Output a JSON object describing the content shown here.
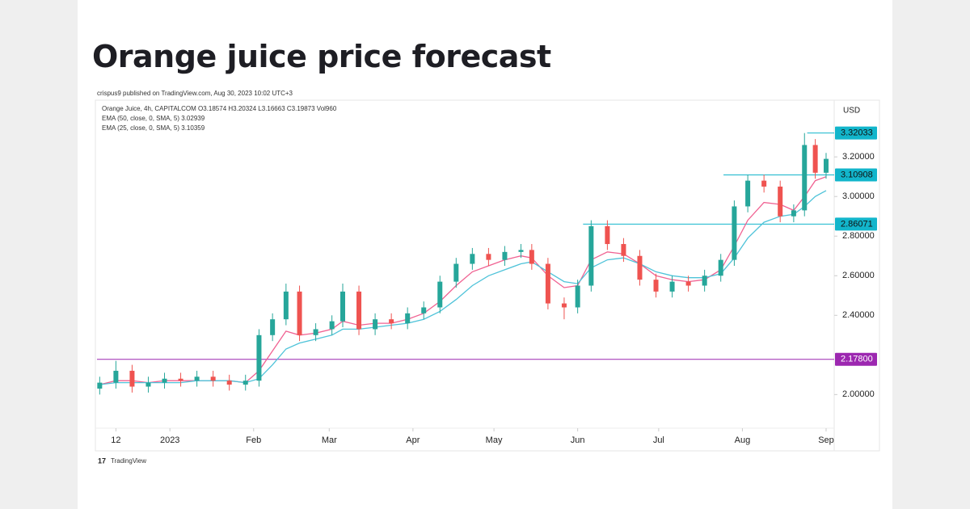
{
  "header": {
    "title": "Orange juice price forecast"
  },
  "chart_data": {
    "type": "candlestick",
    "published": "crispus9 published on TradingView.com, Aug 30, 2023 10:02 UTC+3",
    "legend_lines": [
      "Orange Juice, 4h, CAPITALCOM O3.18574 H3.20324 L3.16663 C3.19873 Vol960",
      "EMA (50, close, 0, SMA, 5) 3.02939",
      "EMA (25, close, 0, SMA, 5) 3.10359"
    ],
    "currency": "USD",
    "footer": "TradingView",
    "up_color": "#26a69a",
    "down_color": "#ef5350",
    "x": [
      -26,
      -20,
      -14,
      -8,
      -2,
      4,
      10,
      16,
      22,
      28,
      33,
      38,
      43,
      48,
      54,
      60,
      64,
      70,
      76,
      82,
      88,
      94,
      100,
      106,
      112,
      118,
      124,
      130,
      134,
      140,
      146,
      151,
      156,
      162,
      168,
      174,
      180,
      186,
      192,
      198,
      204,
      209,
      214,
      220,
      226,
      231,
      235,
      239,
      243
    ],
    "open": [
      2.03,
      2.06,
      2.12,
      2.04,
      2.06,
      2.08,
      2.07,
      2.09,
      2.07,
      2.05,
      2.07,
      2.3,
      2.38,
      2.52,
      2.3,
      2.33,
      2.37,
      2.52,
      2.33,
      2.38,
      2.36,
      2.41,
      2.44,
      2.57,
      2.66,
      2.71,
      2.68,
      2.72,
      2.73,
      2.66,
      2.46,
      2.44,
      2.55,
      2.85,
      2.76,
      2.7,
      2.58,
      2.52,
      2.57,
      2.55,
      2.6,
      2.68,
      2.95,
      3.08,
      3.05,
      2.9,
      2.93,
      3.26,
      3.12
    ],
    "high": [
      2.09,
      2.17,
      2.15,
      2.09,
      2.11,
      2.11,
      2.12,
      2.12,
      2.1,
      2.1,
      2.33,
      2.41,
      2.56,
      2.55,
      2.36,
      2.4,
      2.56,
      2.55,
      2.41,
      2.41,
      2.44,
      2.47,
      2.6,
      2.69,
      2.74,
      2.74,
      2.75,
      2.76,
      2.76,
      2.69,
      2.49,
      2.58,
      2.88,
      2.88,
      2.79,
      2.73,
      2.61,
      2.6,
      2.6,
      2.63,
      2.71,
      2.98,
      3.11,
      3.11,
      3.08,
      2.96,
      3.32033,
      3.29,
      3.22
    ],
    "low": [
      2.0,
      2.03,
      2.01,
      2.01,
      2.03,
      2.04,
      2.04,
      2.04,
      2.02,
      2.02,
      2.04,
      2.27,
      2.35,
      2.27,
      2.27,
      2.3,
      2.34,
      2.3,
      2.3,
      2.33,
      2.33,
      2.38,
      2.41,
      2.54,
      2.63,
      2.65,
      2.65,
      2.69,
      2.63,
      2.43,
      2.38,
      2.41,
      2.52,
      2.73,
      2.67,
      2.55,
      2.49,
      2.49,
      2.52,
      2.52,
      2.57,
      2.65,
      2.92,
      3.02,
      2.87,
      2.87,
      2.9,
      3.09,
      3.09
    ],
    "close": [
      2.06,
      2.12,
      2.04,
      2.06,
      2.08,
      2.07,
      2.09,
      2.07,
      2.05,
      2.07,
      2.3,
      2.38,
      2.52,
      2.3,
      2.33,
      2.37,
      2.52,
      2.33,
      2.38,
      2.36,
      2.41,
      2.44,
      2.57,
      2.66,
      2.71,
      2.68,
      2.72,
      2.73,
      2.66,
      2.46,
      2.44,
      2.55,
      2.85,
      2.76,
      2.7,
      2.58,
      2.52,
      2.57,
      2.55,
      2.6,
      2.68,
      2.95,
      3.08,
      3.05,
      2.9,
      2.93,
      3.26,
      3.12,
      3.19
    ],
    "series": [
      {
        "color": "#f06292",
        "values": [
          2.05,
          2.07,
          2.07,
          2.06,
          2.07,
          2.07,
          2.07,
          2.07,
          2.07,
          2.06,
          2.12,
          2.22,
          2.32,
          2.3,
          2.31,
          2.33,
          2.37,
          2.35,
          2.36,
          2.36,
          2.38,
          2.41,
          2.47,
          2.55,
          2.62,
          2.65,
          2.68,
          2.7,
          2.69,
          2.6,
          2.54,
          2.55,
          2.68,
          2.72,
          2.71,
          2.66,
          2.6,
          2.58,
          2.57,
          2.58,
          2.63,
          2.75,
          2.88,
          2.97,
          2.96,
          2.93,
          3.0,
          3.08,
          3.1
        ]
      },
      {
        "color": "#4fc3d9",
        "values": [
          2.05,
          2.06,
          2.06,
          2.06,
          2.06,
          2.06,
          2.07,
          2.07,
          2.07,
          2.06,
          2.08,
          2.15,
          2.23,
          2.26,
          2.28,
          2.3,
          2.33,
          2.33,
          2.34,
          2.35,
          2.36,
          2.38,
          2.42,
          2.48,
          2.55,
          2.6,
          2.63,
          2.66,
          2.67,
          2.62,
          2.57,
          2.56,
          2.64,
          2.68,
          2.69,
          2.66,
          2.62,
          2.6,
          2.59,
          2.59,
          2.61,
          2.69,
          2.79,
          2.87,
          2.9,
          2.91,
          2.95,
          3.0,
          3.03
        ]
      }
    ],
    "levels": [
      {
        "value": 3.32033,
        "label": "3.32033",
        "color": "#12b5cb",
        "from": 236
      },
      {
        "value": 3.10908,
        "label": "3.10908",
        "color": "#12b5cb",
        "from": 205
      },
      {
        "value": 2.86071,
        "label": "2.86071",
        "color": "#12b5cb",
        "from": 153
      },
      {
        "value": 2.178,
        "label": "2.17800",
        "color": "#9c27b0",
        "from": -27
      }
    ],
    "xlim": [
      -27,
      246
    ],
    "xticks": [
      {
        "value": -20,
        "label": "12"
      },
      {
        "value": 0,
        "label": "2023"
      },
      {
        "value": 31,
        "label": "Feb"
      },
      {
        "value": 59,
        "label": "Mar"
      },
      {
        "value": 90,
        "label": "Apr"
      },
      {
        "value": 120,
        "label": "May"
      },
      {
        "value": 151,
        "label": "Jun"
      },
      {
        "value": 181,
        "label": "Jul"
      },
      {
        "value": 212,
        "label": "Aug"
      },
      {
        "value": 243,
        "label": "Sep"
      }
    ],
    "ylim": [
      1.83,
      3.47
    ],
    "yticks": [
      {
        "value": 2,
        "label": "2.00000"
      },
      {
        "value": 2.4,
        "label": "2.40000"
      },
      {
        "value": 2.6,
        "label": "2.60000"
      },
      {
        "value": 2.8,
        "label": "2.80000"
      },
      {
        "value": 3,
        "label": "3.00000"
      },
      {
        "value": 3.2,
        "label": "3.20000"
      }
    ]
  }
}
